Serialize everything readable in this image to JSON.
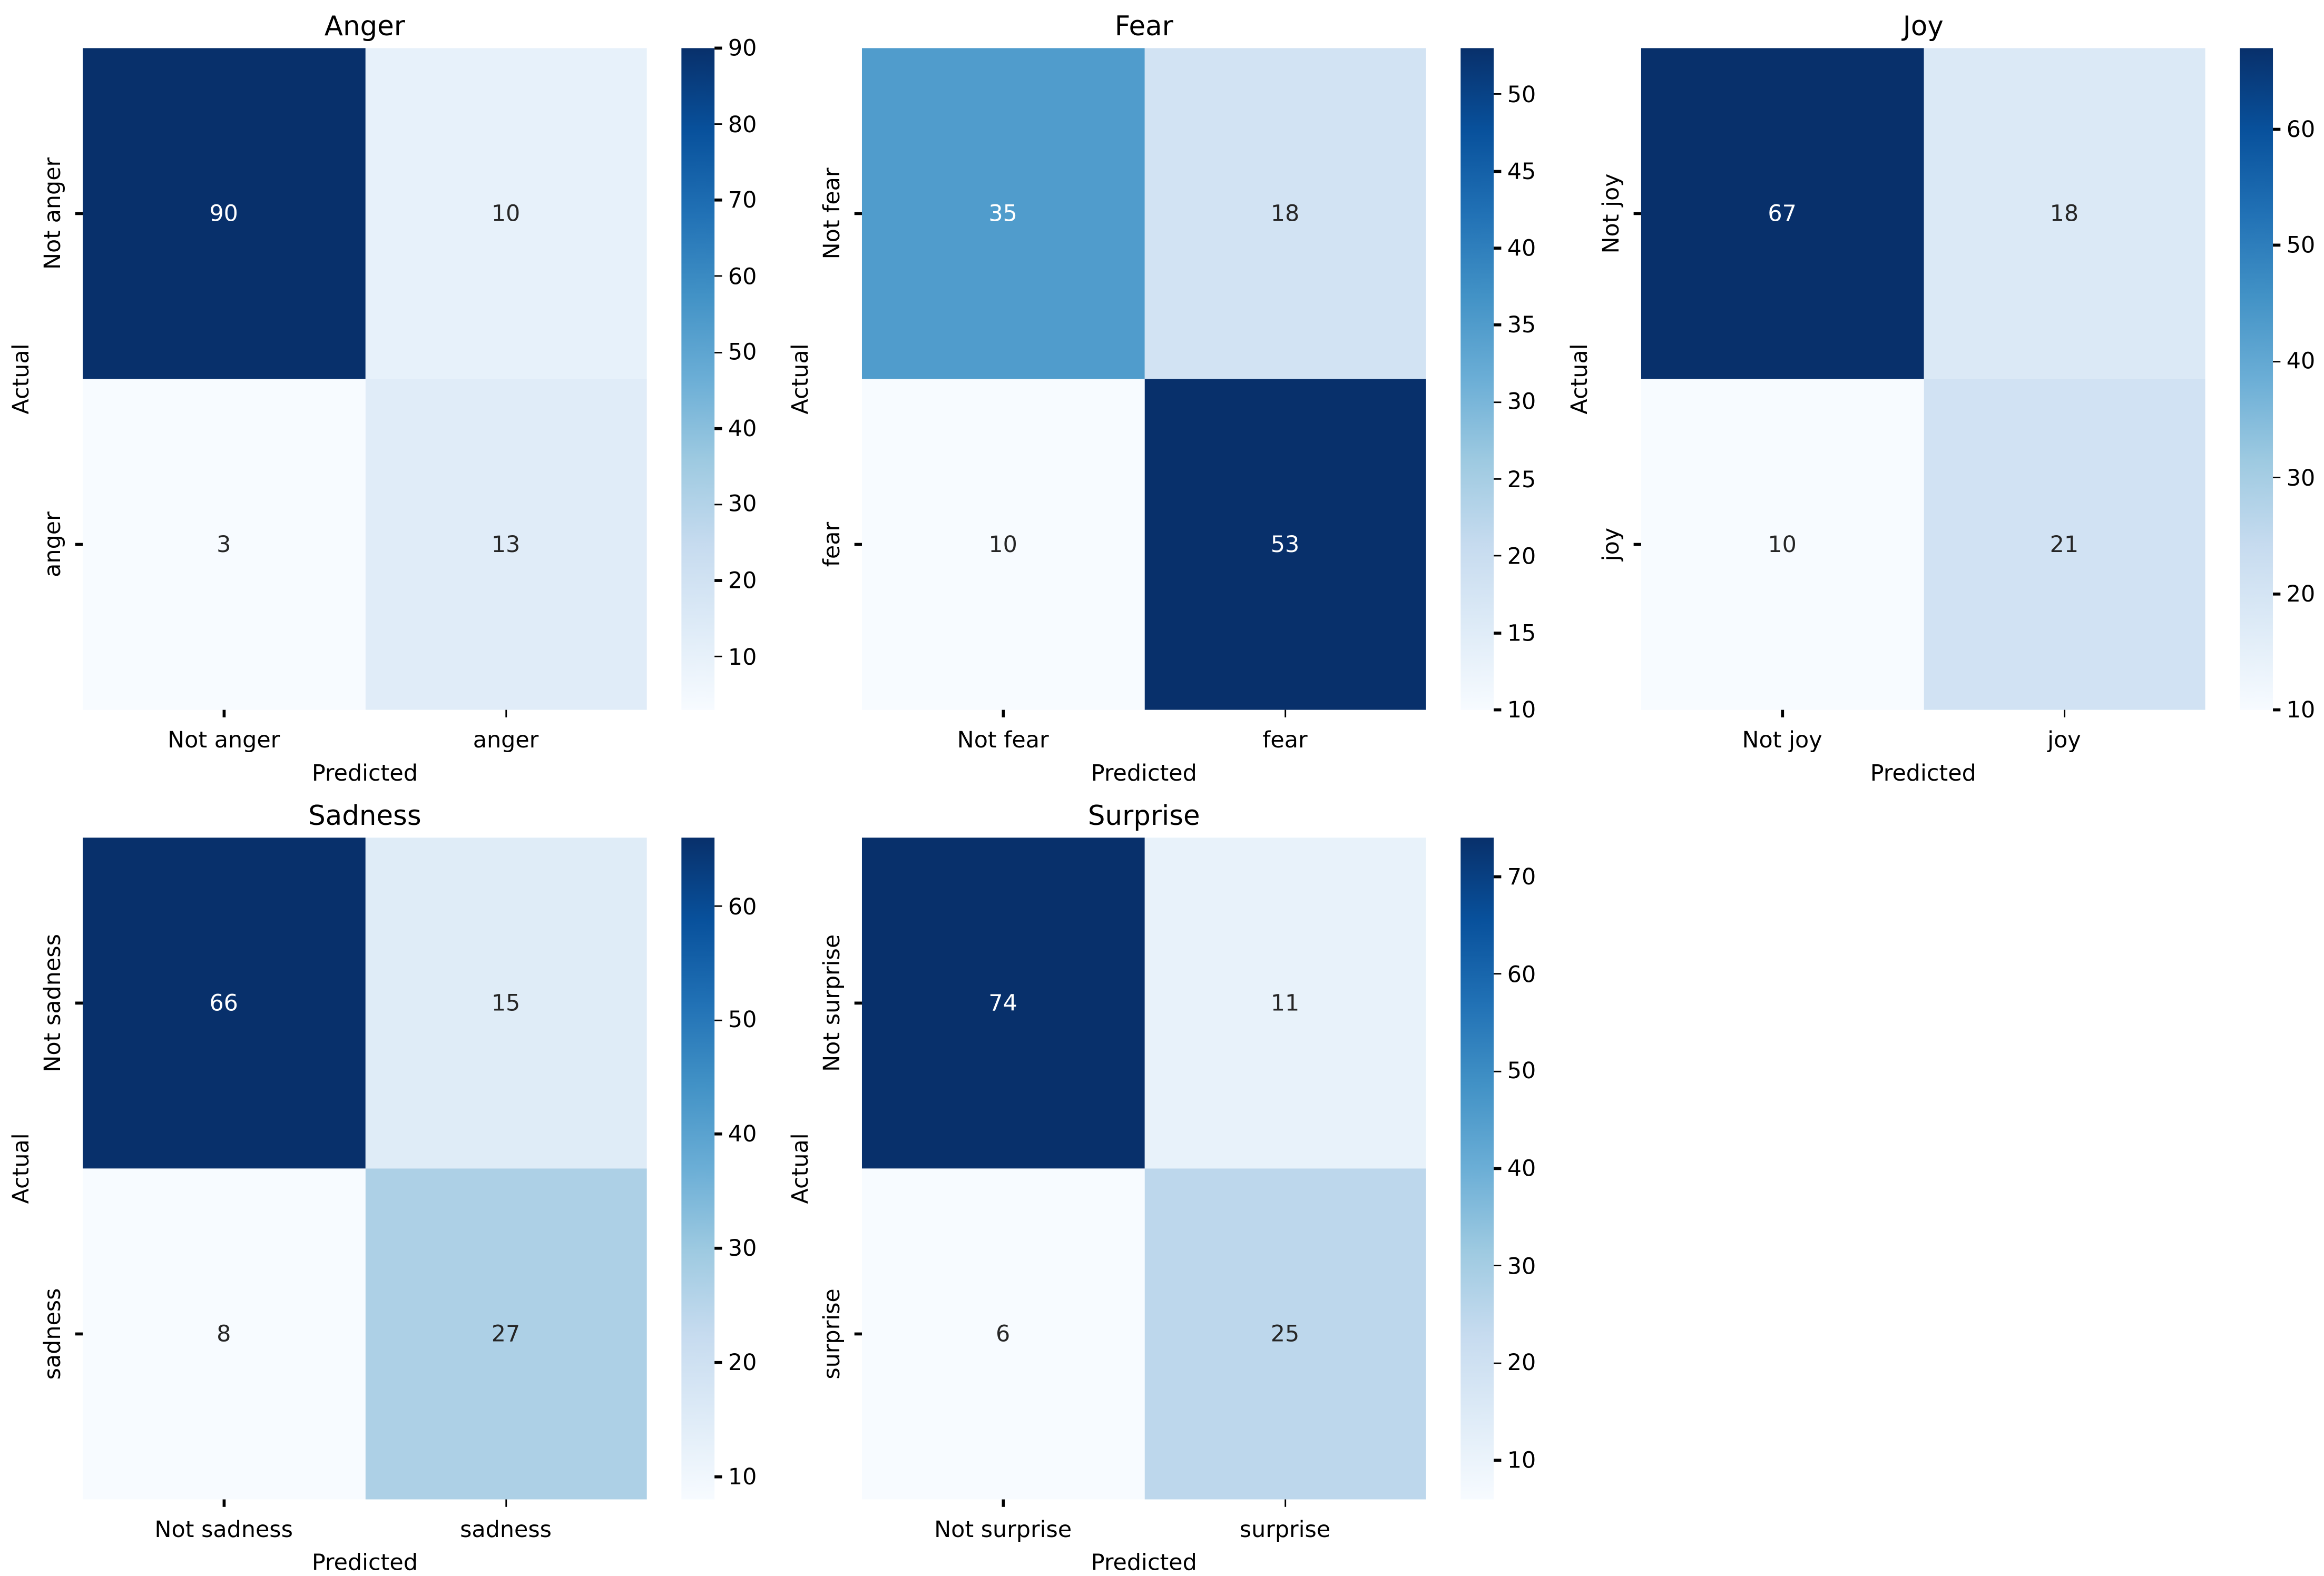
{
  "figure": {
    "background_color": "#ffffff",
    "colormap_name": "Blues",
    "colormap_stops": [
      "#f7fbff",
      "#deebf7",
      "#c6dbef",
      "#9ecae1",
      "#6baed6",
      "#4292c6",
      "#2171b5",
      "#08519c",
      "#08306b"
    ],
    "annotation_light_text_color": "#ffffff",
    "annotation_dark_text_color": "#262626",
    "axis_text_color": "#000000"
  },
  "chart_data": [
    {
      "type": "heatmap",
      "title": "Anger",
      "x_categories": [
        "Not anger",
        "anger"
      ],
      "y_categories": [
        "Not anger",
        "anger"
      ],
      "values": [
        [
          90,
          10
        ],
        [
          3,
          13
        ]
      ],
      "xlabel": "Predicted",
      "ylabel": "Actual",
      "vmin": 3,
      "vmax": 90,
      "colorbar_ticks": [
        10,
        20,
        30,
        40,
        50,
        60,
        70,
        80,
        90
      ],
      "row": 0,
      "col": 0
    },
    {
      "type": "heatmap",
      "title": "Fear",
      "x_categories": [
        "Not fear",
        "fear"
      ],
      "y_categories": [
        "Not fear",
        "fear"
      ],
      "values": [
        [
          35,
          18
        ],
        [
          10,
          53
        ]
      ],
      "xlabel": "Predicted",
      "ylabel": "Actual",
      "vmin": 10,
      "vmax": 53,
      "colorbar_ticks": [
        10,
        15,
        20,
        25,
        30,
        35,
        40,
        45,
        50
      ],
      "row": 0,
      "col": 1
    },
    {
      "type": "heatmap",
      "title": "Joy",
      "x_categories": [
        "Not joy",
        "joy"
      ],
      "y_categories": [
        "Not joy",
        "joy"
      ],
      "values": [
        [
          67,
          18
        ],
        [
          10,
          21
        ]
      ],
      "xlabel": "Predicted",
      "ylabel": "Actual",
      "vmin": 10,
      "vmax": 67,
      "colorbar_ticks": [
        10,
        20,
        30,
        40,
        50,
        60
      ],
      "row": 0,
      "col": 2
    },
    {
      "type": "heatmap",
      "title": "Sadness",
      "x_categories": [
        "Not sadness",
        "sadness"
      ],
      "y_categories": [
        "Not sadness",
        "sadness"
      ],
      "values": [
        [
          66,
          15
        ],
        [
          8,
          27
        ]
      ],
      "xlabel": "Predicted",
      "ylabel": "Actual",
      "vmin": 8,
      "vmax": 66,
      "colorbar_ticks": [
        10,
        20,
        30,
        40,
        50,
        60
      ],
      "row": 1,
      "col": 0
    },
    {
      "type": "heatmap",
      "title": "Surprise",
      "x_categories": [
        "Not surprise",
        "surprise"
      ],
      "y_categories": [
        "Not surprise",
        "surprise"
      ],
      "values": [
        [
          74,
          11
        ],
        [
          6,
          25
        ]
      ],
      "xlabel": "Predicted",
      "ylabel": "Actual",
      "vmin": 6,
      "vmax": 74,
      "colorbar_ticks": [
        10,
        20,
        30,
        40,
        50,
        60,
        70
      ],
      "row": 1,
      "col": 1
    }
  ]
}
